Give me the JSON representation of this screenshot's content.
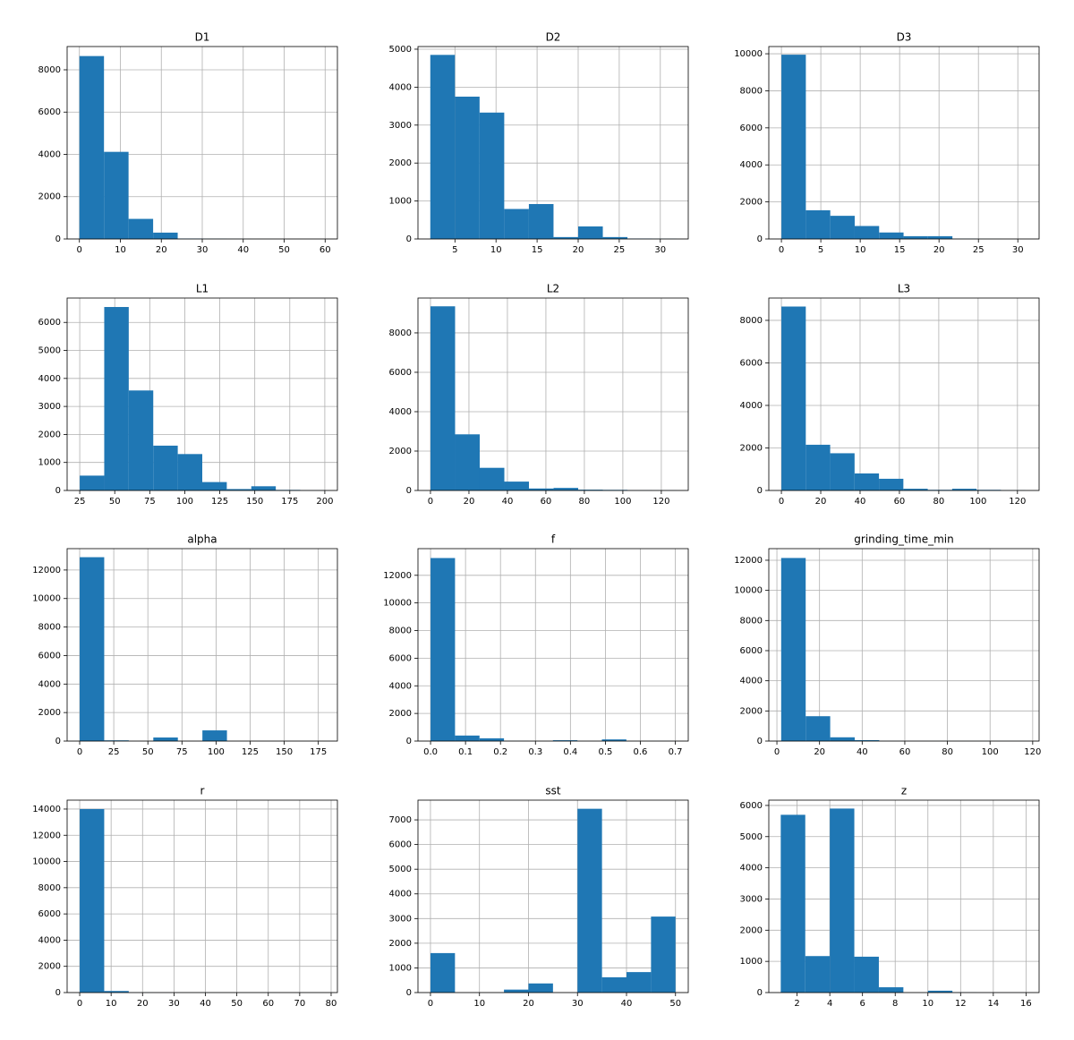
{
  "chart_data": [
    {
      "type": "histogram",
      "title": "D1",
      "color": "#1f77b4",
      "grid": true,
      "bins": [
        0,
        6,
        12,
        18,
        24,
        30,
        36,
        42,
        48,
        54,
        60
      ],
      "counts": [
        8650,
        4120,
        950,
        300,
        20,
        10,
        5,
        3,
        2,
        1
      ],
      "xlim": [
        -3,
        63
      ],
      "ylim": [
        0,
        9100
      ],
      "xticks": [
        0,
        10,
        20,
        30,
        40,
        50,
        60
      ],
      "yticks": [
        0,
        2000,
        4000,
        6000,
        8000
      ]
    },
    {
      "type": "histogram",
      "title": "D2",
      "color": "#1f77b4",
      "grid": true,
      "bins": [
        2,
        5,
        8,
        11,
        14,
        17,
        20,
        23,
        26,
        29,
        32
      ],
      "counts": [
        4850,
        3750,
        3330,
        790,
        920,
        50,
        330,
        50,
        10,
        5
      ],
      "xlim": [
        0.5,
        33.4
      ],
      "ylim": [
        0,
        5070
      ],
      "xticks": [
        5,
        10,
        15,
        20,
        25,
        30
      ],
      "yticks": [
        0,
        1000,
        2000,
        3000,
        4000,
        5000
      ]
    },
    {
      "type": "histogram",
      "title": "D3",
      "color": "#1f77b4",
      "grid": true,
      "bins": [
        0,
        3.1,
        6.2,
        9.3,
        12.4,
        15.5,
        18.6,
        21.7,
        24.8,
        27.9,
        31
      ],
      "counts": [
        9950,
        1550,
        1250,
        700,
        350,
        150,
        150,
        10,
        5,
        2
      ],
      "xlim": [
        -1.6,
        32.7
      ],
      "ylim": [
        0,
        10390
      ],
      "xticks": [
        0,
        5,
        10,
        15,
        20,
        25,
        30
      ],
      "yticks": [
        0,
        2000,
        4000,
        6000,
        8000,
        10000
      ]
    },
    {
      "type": "histogram",
      "title": "L1",
      "color": "#1f77b4",
      "grid": true,
      "bins": [
        25,
        42.5,
        60,
        77.5,
        95,
        112.5,
        130,
        147.5,
        165,
        182.5,
        200
      ],
      "counts": [
        530,
        6550,
        3570,
        1600,
        1300,
        300,
        50,
        150,
        20,
        5
      ],
      "xlim": [
        16,
        209
      ],
      "ylim": [
        0,
        6870
      ],
      "xticks": [
        25,
        50,
        75,
        100,
        125,
        150,
        175,
        200
      ],
      "yticks": [
        0,
        1000,
        2000,
        3000,
        4000,
        5000,
        6000
      ]
    },
    {
      "type": "histogram",
      "title": "L2",
      "color": "#1f77b4",
      "grid": true,
      "bins": [
        0,
        12.8,
        25.6,
        38.4,
        51.2,
        64,
        76.8,
        89.6,
        102.4,
        115.2,
        128
      ],
      "counts": [
        9350,
        2850,
        1150,
        450,
        100,
        130,
        40,
        30,
        10,
        5
      ],
      "xlim": [
        -6.5,
        134
      ],
      "ylim": [
        0,
        9770
      ],
      "xticks": [
        0,
        20,
        40,
        60,
        80,
        100,
        120
      ],
      "yticks": [
        0,
        2000,
        4000,
        6000,
        8000
      ]
    },
    {
      "type": "histogram",
      "title": "L3",
      "color": "#1f77b4",
      "grid": true,
      "bins": [
        0,
        12.4,
        24.8,
        37.2,
        49.6,
        62,
        74.4,
        86.8,
        99.2,
        111.6,
        124
      ],
      "counts": [
        8650,
        2150,
        1750,
        800,
        550,
        80,
        30,
        80,
        30,
        10
      ],
      "xlim": [
        -6.4,
        131
      ],
      "ylim": [
        0,
        9050
      ],
      "xticks": [
        0,
        20,
        40,
        60,
        80,
        100,
        120
      ],
      "yticks": [
        0,
        2000,
        4000,
        6000,
        8000
      ]
    },
    {
      "type": "histogram",
      "title": "alpha",
      "color": "#1f77b4",
      "grid": true,
      "bins": [
        0,
        18,
        36,
        54,
        72,
        90,
        108,
        126,
        144,
        162,
        180
      ],
      "counts": [
        12900,
        50,
        0,
        250,
        0,
        750,
        0,
        0,
        0,
        0
      ],
      "xlim": [
        -9.2,
        189
      ],
      "ylim": [
        0,
        13500
      ],
      "xticks": [
        0,
        25,
        50,
        75,
        100,
        125,
        150,
        175
      ],
      "yticks": [
        0,
        2000,
        4000,
        6000,
        8000,
        10000,
        12000
      ]
    },
    {
      "type": "histogram",
      "title": "f",
      "color": "#1f77b4",
      "grid": true,
      "bins": [
        0,
        0.07,
        0.14,
        0.21,
        0.28,
        0.35,
        0.42,
        0.49,
        0.56,
        0.63,
        0.7
      ],
      "counts": [
        13250,
        400,
        200,
        10,
        0,
        60,
        0,
        120,
        0,
        5
      ],
      "xlim": [
        -0.036,
        0.737
      ],
      "ylim": [
        0,
        13930
      ],
      "xticks": [
        {
          "value": 0,
          "label": "0.0"
        },
        0.1,
        0.2,
        0.3,
        0.4,
        0.5,
        0.6,
        0.7
      ],
      "yticks": [
        0,
        2000,
        4000,
        6000,
        8000,
        10000,
        12000
      ]
    },
    {
      "type": "histogram",
      "title": "grinding_time_min",
      "color": "#1f77b4",
      "grid": true,
      "bins": [
        2,
        13.5,
        25,
        36.5,
        48,
        59.5,
        71,
        82.5,
        94,
        105.5,
        117
      ],
      "counts": [
        12150,
        1650,
        250,
        60,
        5,
        2,
        1,
        1,
        1,
        1
      ],
      "xlim": [
        -3.8,
        123
      ],
      "ylim": [
        0,
        12770
      ],
      "xticks": [
        0,
        20,
        40,
        60,
        80,
        100,
        120
      ],
      "yticks": [
        0,
        2000,
        4000,
        6000,
        8000,
        10000,
        12000
      ]
    },
    {
      "type": "histogram",
      "title": "r",
      "color": "#1f77b4",
      "grid": true,
      "bins": [
        0,
        7.8,
        15.6,
        23.4,
        31.2,
        39,
        46.8,
        54.6,
        62.4,
        70.2,
        78
      ],
      "counts": [
        14000,
        120,
        5,
        2,
        1,
        1,
        1,
        1,
        0,
        1
      ],
      "xlim": [
        -4,
        82
      ],
      "ylim": [
        0,
        14680
      ],
      "xticks": [
        0,
        10,
        20,
        30,
        40,
        50,
        60,
        70,
        80
      ],
      "yticks": [
        0,
        2000,
        4000,
        6000,
        8000,
        10000,
        12000,
        14000
      ]
    },
    {
      "type": "histogram",
      "title": "sst",
      "color": "#1f77b4",
      "grid": true,
      "bins": [
        0,
        5,
        10,
        15,
        20,
        25,
        30,
        35,
        40,
        45,
        50
      ],
      "counts": [
        1600,
        0,
        0,
        120,
        370,
        0,
        7450,
        620,
        830,
        3080
      ],
      "xlim": [
        -2.55,
        52.6
      ],
      "ylim": [
        0,
        7800
      ],
      "xticks": [
        0,
        10,
        20,
        30,
        40,
        50
      ],
      "yticks": [
        0,
        1000,
        2000,
        3000,
        4000,
        5000,
        6000,
        7000
      ]
    },
    {
      "type": "histogram",
      "title": "z",
      "color": "#1f77b4",
      "grid": true,
      "bins": [
        1,
        2.5,
        4,
        5.5,
        7,
        8.5,
        10,
        11.5,
        13,
        14.5,
        16
      ],
      "counts": [
        5700,
        1170,
        5900,
        1150,
        170,
        0,
        60,
        5,
        2,
        1
      ],
      "xlim": [
        0.27,
        16.8
      ],
      "ylim": [
        0,
        6170
      ],
      "xticks": [
        2,
        4,
        6,
        8,
        10,
        12,
        14,
        16
      ],
      "yticks": [
        0,
        1000,
        2000,
        3000,
        4000,
        5000,
        6000
      ]
    }
  ]
}
